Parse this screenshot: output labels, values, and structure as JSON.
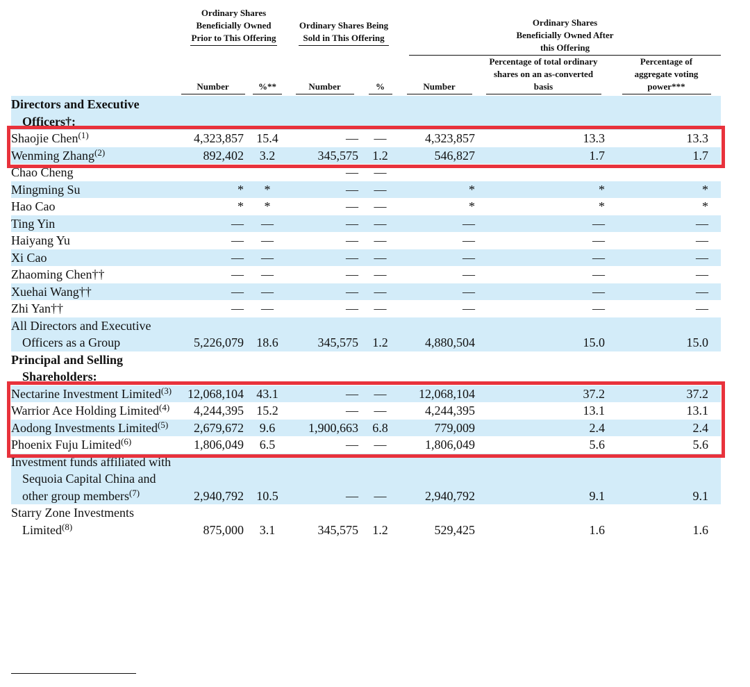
{
  "table": {
    "column_groups": [
      "Ordinary Shares Beneficially Owned Prior to This Offering",
      "Ordinary Shares Being Sold in This Offering",
      "Ordinary Shares Beneficially Owned After this Offering"
    ],
    "columns": [
      "Number",
      "%**",
      "Number",
      "%",
      "Number",
      "Percentage of total ordinary shares on an as-converted basis",
      "Percentage of aggregate voting power***"
    ],
    "sections": [
      {
        "heading": "Directors and Executive Officers†:",
        "rows": [
          {
            "name": "Shaojie Chen",
            "note": "(1)",
            "cells": [
              "4,323,857",
              "15.4",
              "—",
              "—",
              "4,323,857",
              "13.3",
              "13.3"
            ]
          },
          {
            "name": "Wenming Zhang",
            "note": "(2)",
            "cells": [
              "892,402",
              "3.2",
              "345,575",
              "1.2",
              "546,827",
              "1.7",
              "1.7"
            ]
          },
          {
            "name": "Chao Cheng",
            "cells": [
              null,
              null,
              "—",
              "—",
              null,
              null,
              null
            ]
          },
          {
            "name": "Mingming Su",
            "cells": [
              "*",
              "*",
              "—",
              "—",
              "*",
              "*",
              "*"
            ]
          },
          {
            "name": "Hao Cao",
            "cells": [
              "*",
              "*",
              "—",
              "—",
              "*",
              "*",
              "*"
            ]
          },
          {
            "name": "Ting Yin",
            "cells": [
              "—",
              "—",
              "—",
              "—",
              "—",
              "—",
              "—"
            ]
          },
          {
            "name": "Haiyang Yu",
            "cells": [
              "—",
              "—",
              "—",
              "—",
              "—",
              "—",
              "—"
            ]
          },
          {
            "name": "Xi Cao",
            "cells": [
              "—",
              "—",
              "—",
              "—",
              "—",
              "—",
              "—"
            ]
          },
          {
            "name": "Zhaoming Chen††",
            "cells": [
              "—",
              "—",
              "—",
              "—",
              "—",
              "—",
              "—"
            ]
          },
          {
            "name": "Xuehai Wang††",
            "cells": [
              "—",
              "—",
              "—",
              "—",
              "—",
              "—",
              "—"
            ]
          },
          {
            "name": "Zhi Yan††",
            "cells": [
              "—",
              "—",
              "—",
              "—",
              "—",
              "—",
              "—"
            ]
          },
          {
            "name": "All Directors and Executive Officers as a Group",
            "cells": [
              "5,226,079",
              "18.6",
              "345,575",
              "1.2",
              "4,880,504",
              "15.0",
              "15.0"
            ]
          }
        ]
      },
      {
        "heading": "Principal and Selling Shareholders:",
        "rows": [
          {
            "name": "Nectarine Investment Limited",
            "note": "(3)",
            "cells": [
              "12,068,104",
              "43.1",
              "—",
              "—",
              "12,068,104",
              "37.2",
              "37.2"
            ]
          },
          {
            "name": "Warrior Ace Holding Limited",
            "note": "(4)",
            "cells": [
              "4,244,395",
              "15.2",
              "—",
              "—",
              "4,244,395",
              "13.1",
              "13.1"
            ]
          },
          {
            "name": "Aodong Investments Limited",
            "note": "(5)",
            "cells": [
              "2,679,672",
              "9.6",
              "1,900,663",
              "6.8",
              "779,009",
              "2.4",
              "2.4"
            ]
          },
          {
            "name": "Phoenix Fuju Limited",
            "note": "(6)",
            "cells": [
              "1,806,049",
              "6.5",
              "—",
              "—",
              "1,806,049",
              "5.6",
              "5.6"
            ]
          },
          {
            "name": "Investment funds affiliated with Sequoia Capital China and other group members",
            "note": "(7)",
            "cells": [
              "2,940,792",
              "10.5",
              "—",
              "—",
              "2,940,792",
              "9.1",
              "9.1"
            ]
          },
          {
            "name": "Starry Zone Investments Limited",
            "note": "(8)",
            "cells": [
              "875,000",
              "3.1",
              "345,575",
              "1.2",
              "529,425",
              "1.6",
              "1.6"
            ]
          }
        ]
      }
    ]
  }
}
